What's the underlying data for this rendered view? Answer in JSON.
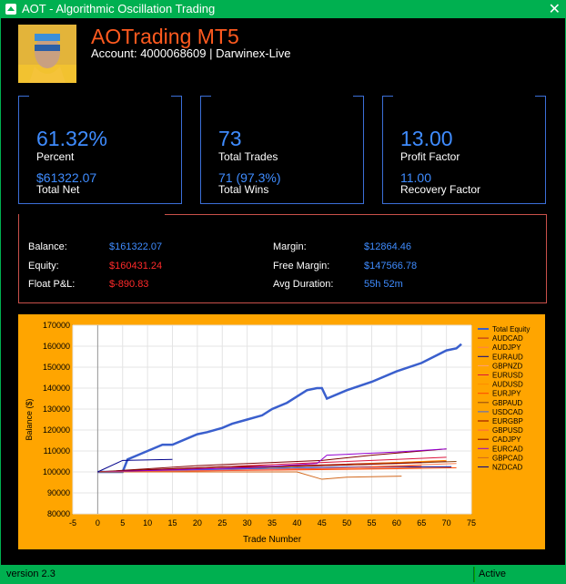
{
  "window": {
    "title": "AOT - Algorithmic Oscillation Trading"
  },
  "header": {
    "brand": "AOTrading  MT5",
    "account": "Account: 4000068609 | Darwinex-Live"
  },
  "cards": [
    {
      "big": "61.32%",
      "label1": "Percent",
      "sub": "$61322.07",
      "label2": "Total Net"
    },
    {
      "big": "73",
      "label1": "Total Trades",
      "sub": "71 (97.3%)",
      "label2": "Total Wins"
    },
    {
      "big": "13.00",
      "label1": "Profit Factor",
      "sub": "11.00",
      "label2": "Recovery Factor"
    }
  ],
  "stats": {
    "balance_label": "Balance:",
    "balance": "$161322.07",
    "equity_label": "Equity:",
    "equity": "$160431.24",
    "float_label": "Float P&L:",
    "float": "$-890.83",
    "margin_label": "Margin:",
    "margin": "$12864.46",
    "free_margin_label": "Free Margin:",
    "free_margin": "$147566.78",
    "avg_duration_label": "Avg Duration:",
    "avg_duration": "55h 52m"
  },
  "colors": {
    "accent_green": "#00b050",
    "brand_orange": "#ff5a1f",
    "value_blue": "#3f8cff",
    "value_red": "#ff2a2a",
    "chart_bg": "#ffa500"
  },
  "chart_data": {
    "type": "line",
    "xlabel": "Trade Number",
    "ylabel": "Balance ($)",
    "xlim": [
      -5,
      75
    ],
    "ylim": [
      80000,
      170000
    ],
    "x_ticks": [
      -5,
      0,
      5,
      10,
      15,
      20,
      25,
      30,
      35,
      40,
      45,
      50,
      55,
      60,
      65,
      70,
      75
    ],
    "y_ticks": [
      80000,
      90000,
      100000,
      110000,
      120000,
      130000,
      140000,
      150000,
      160000,
      170000
    ],
    "legend_position": "right",
    "grid": true,
    "series": [
      {
        "name": "Total Equity",
        "color": "#3a5fcd",
        "x": [
          0,
          5,
          6,
          8,
          10,
          13,
          15,
          18,
          20,
          22,
          25,
          27,
          30,
          33,
          35,
          38,
          40,
          42,
          44,
          45,
          46,
          50,
          55,
          60,
          65,
          70,
          72,
          73
        ],
        "y": [
          100000,
          100000,
          106000,
          108000,
          110000,
          113000,
          113000,
          116000,
          118000,
          119000,
          121000,
          123000,
          125000,
          127000,
          130000,
          133000,
          136000,
          139000,
          140000,
          140000,
          135000,
          139000,
          143000,
          148000,
          152000,
          158000,
          159000,
          161000
        ]
      },
      {
        "name": "AUDCAD",
        "color": "#b22222",
        "x": [
          0,
          20,
          40,
          60,
          70
        ],
        "y": [
          100000,
          101500,
          103000,
          104500,
          105000
        ]
      },
      {
        "name": "AUDJPY",
        "color": "#ff7f50",
        "x": [
          0,
          30,
          60,
          72
        ],
        "y": [
          100000,
          101000,
          103000,
          104000
        ]
      },
      {
        "name": "EURAUD",
        "color": "#00008b",
        "x": [
          0,
          40,
          71
        ],
        "y": [
          100000,
          102000,
          102500
        ]
      },
      {
        "name": "GBPNZD",
        "color": "#ffa07a",
        "x": [
          0,
          30,
          65
        ],
        "y": [
          100000,
          101000,
          102000
        ]
      },
      {
        "name": "EURUSD",
        "color": "#dc143c",
        "x": [
          0,
          20,
          40,
          60,
          70
        ],
        "y": [
          100000,
          102000,
          104000,
          106000,
          107000
        ]
      },
      {
        "name": "AUDUSD",
        "color": "#ff8c00",
        "x": [
          0,
          25,
          50,
          70
        ],
        "y": [
          100000,
          101500,
          103500,
          105500
        ]
      },
      {
        "name": "EURJPY",
        "color": "#ff4500",
        "x": [
          0,
          20,
          40,
          60,
          72
        ],
        "y": [
          100000,
          100500,
          101000,
          101500,
          102000
        ]
      },
      {
        "name": "GBPAUD",
        "color": "#8b4513",
        "x": [
          0,
          30,
          60,
          72
        ],
        "y": [
          100000,
          102000,
          104000,
          105000
        ]
      },
      {
        "name": "USDCAD",
        "color": "#4169e1",
        "x": [
          0,
          20,
          40,
          55
        ],
        "y": [
          100000,
          101000,
          102000,
          102500
        ]
      },
      {
        "name": "EURGBP",
        "color": "#8b0000",
        "x": [
          0,
          25,
          45,
          65
        ],
        "y": [
          100000,
          102500,
          103000,
          104500
        ]
      },
      {
        "name": "GBPUSD",
        "color": "#ff6347",
        "x": [
          0,
          35,
          65
        ],
        "y": [
          100000,
          101000,
          103000
        ]
      },
      {
        "name": "CADJPY",
        "color": "#800000",
        "x": [
          0,
          20,
          45,
          55,
          70
        ],
        "y": [
          100000,
          103000,
          105500,
          108000,
          111000
        ]
      },
      {
        "name": "EURCAD",
        "color": "#9400d3",
        "x": [
          0,
          30,
          44,
          46,
          60,
          70
        ],
        "y": [
          100000,
          102000,
          104000,
          108000,
          109500,
          111000
        ]
      },
      {
        "name": "GBPCAD",
        "color": "#d2691e",
        "x": [
          0,
          40,
          45,
          50,
          61
        ],
        "y": [
          100000,
          100000,
          96500,
          97500,
          98000
        ]
      },
      {
        "name": "NZDCAD",
        "color": "#00008b",
        "x": [
          0,
          5,
          15
        ],
        "y": [
          100000,
          105500,
          106000
        ]
      }
    ]
  },
  "status": {
    "version": "version 2.3",
    "state": "Active"
  }
}
